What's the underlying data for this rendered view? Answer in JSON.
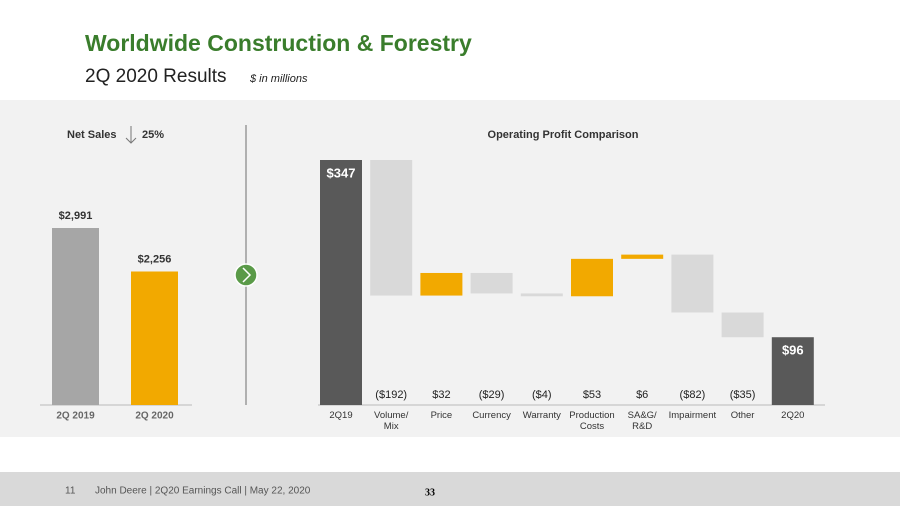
{
  "header": {
    "title": "Worldwide Construction & Forestry",
    "subtitle": "2Q 2020 Results",
    "note": "$ in millions"
  },
  "chart_data": [
    {
      "type": "bar",
      "title": "Net Sales",
      "change": "25%",
      "categories": [
        "2Q 2019",
        "2Q 2020"
      ],
      "values": [
        2991,
        2256
      ],
      "value_labels": [
        "$2,991",
        "$2,256"
      ],
      "colors": [
        "#a6a6a6",
        "#f2a900"
      ]
    },
    {
      "type": "waterfall",
      "title": "Operating Profit Comparison",
      "categories": [
        "2Q19",
        "Volume/ Mix",
        "Price",
        "Currency",
        "Warranty",
        "Production Costs",
        "SA&G/ R&D",
        "Impairment",
        "Other",
        "2Q20"
      ],
      "values": [
        347,
        -192,
        32,
        -29,
        -4,
        53,
        6,
        -82,
        -35,
        96
      ],
      "value_labels": [
        "$347",
        "($192)",
        "$32",
        "($29)",
        "($4)",
        "$53",
        "$6",
        "($82)",
        "($35)",
        "$96"
      ],
      "colors": [
        "#595959",
        "#d9d9d9",
        "#f2a900",
        "#d9d9d9",
        "#d9d9d9",
        "#f2a900",
        "#f2a900",
        "#d9d9d9",
        "#d9d9d9",
        "#595959"
      ]
    }
  ],
  "footer": {
    "page": "11",
    "text": "John Deere | 2Q20 Earnings Call | May 22, 2020",
    "number": "33"
  }
}
